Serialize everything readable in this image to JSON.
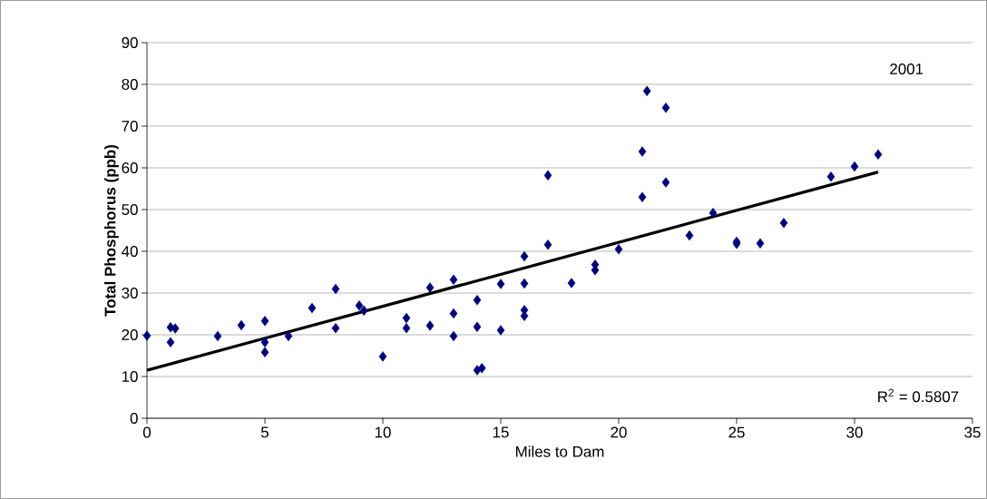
{
  "chart_data": {
    "type": "scatter",
    "xlabel": "Miles to Dam",
    "ylabel": "Total Phosphorus (ppb)",
    "annotations": [
      "2001",
      "R$^{2}$ = 0.5807"
    ],
    "series": [
      {
        "color": "#000080",
        "marker": "diamond",
        "x": [
          0,
          1,
          1,
          1.2,
          3,
          4,
          5,
          5,
          5,
          6,
          7,
          8,
          8,
          9,
          9.2,
          10,
          11,
          11,
          12,
          12,
          13,
          13,
          13,
          14,
          14,
          14,
          14.2,
          15,
          15,
          16,
          16,
          16,
          16,
          17,
          17,
          18,
          19,
          19,
          20,
          21,
          21,
          21.2,
          22,
          22,
          23,
          24,
          25,
          25,
          26,
          27,
          29,
          30,
          31
        ],
        "values": [
          19.8,
          21.8,
          18.2,
          21.5,
          19.7,
          22.3,
          23.3,
          18.2,
          15.8,
          19.7,
          26.4,
          31,
          21.6,
          27,
          25.8,
          14.8,
          24,
          21.6,
          31.3,
          22.2,
          33.2,
          25.1,
          19.7,
          28.3,
          21.9,
          11.5,
          12,
          32.2,
          21.1,
          38.8,
          32.3,
          25.9,
          24.5,
          58.2,
          41.6,
          32.4,
          36.8,
          35.5,
          40.5,
          63.9,
          53,
          78.4,
          74.4,
          56.5,
          43.8,
          49.2,
          42.3,
          41.8,
          41.9,
          46.8,
          57.9,
          60.3,
          63.2
        ]
      },
      {
        "type": "line",
        "color": "#000000",
        "marker": "none",
        "line_style": "solid",
        "x": [
          0,
          31
        ],
        "values": [
          11.5,
          59
        ]
      }
    ],
    "xlim": [
      0,
      35
    ],
    "ylim": [
      0,
      90
    ],
    "xticks": [
      0,
      5,
      10,
      15,
      20,
      25,
      30,
      35
    ],
    "yticks": [
      0,
      10,
      20,
      30,
      40,
      50,
      60,
      70,
      80,
      90
    ],
    "grid": "y"
  }
}
